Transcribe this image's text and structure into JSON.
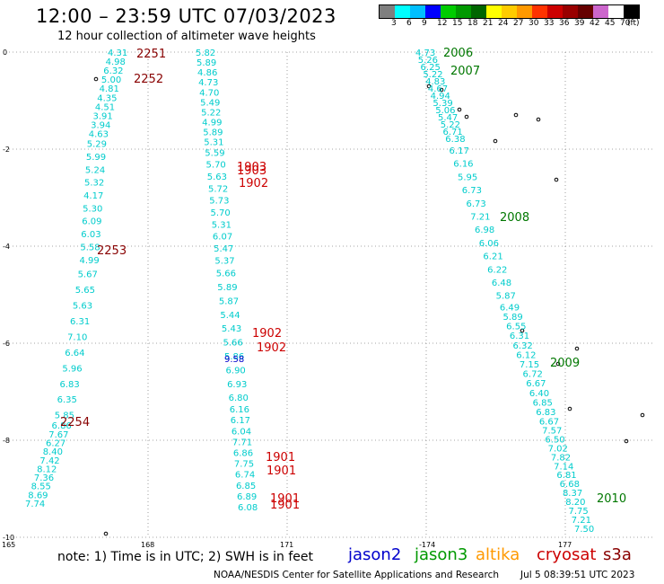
{
  "title": "12:00 – 23:59 UTC 07/03/2023",
  "subtitle": "12 hour collection of altimeter wave heights",
  "colorbar": {
    "colors": [
      "#7f7f7f",
      "#00ffff",
      "#00bfff",
      "#0000ff",
      "#00cc00",
      "#009900",
      "#006600",
      "#ffff00",
      "#ffcc00",
      "#ff9900",
      "#ff3300",
      "#cc0000",
      "#990000",
      "#660000",
      "#cc66cc",
      "#ffffff",
      "#000000"
    ],
    "labels": [
      "3",
      "6",
      "9",
      "12",
      "15",
      "18",
      "21",
      "24",
      "27",
      "30",
      "33",
      "36",
      "39",
      "42",
      "45",
      "70",
      "(ft)"
    ]
  },
  "axes": {
    "y_ticks": [
      "0",
      "-2",
      "-4",
      "-6",
      "-8",
      "-10"
    ],
    "x_ticks": [
      "165",
      "168",
      "171",
      "-174",
      "177"
    ]
  },
  "note": "note:  1) Time is in UTC;  2) SWH is in feet",
  "legend": [
    {
      "name": "jason2",
      "color": "#0000cc"
    },
    {
      "name": "jason3",
      "color": "#009900"
    },
    {
      "name": "altika",
      "color": "#ff9900"
    },
    {
      "name": "cryosat",
      "color": "#cc0000"
    },
    {
      "name": "s3a",
      "color": "#880000"
    }
  ],
  "credit": "NOAA/NESDIS Center for Satellite Applications and Research",
  "generated": "Jul  5 08:39:51 UTC 2023",
  "tracks": [
    {
      "id": "t1",
      "color": "#00cccc",
      "values": [
        "4.31",
        "4.98",
        "6.32",
        "5.00",
        "4.81",
        "4.35",
        "4.51",
        "3.91",
        "3.94",
        "4.63",
        "5.29",
        "5.99",
        "5.24",
        "5.32",
        "4.17",
        "5.30",
        "6.09",
        "6.03",
        "5.58",
        "4.99",
        "5.67",
        "5.65",
        "5.63",
        "6.31",
        "7.10",
        "6.64",
        "5.96",
        "6.83",
        "6.35",
        "5.85",
        "6.86",
        "7.67",
        "6.27",
        "8.40",
        "7.42",
        "8.12",
        "7.36",
        "8.55",
        "8.69",
        "7.74"
      ]
    },
    {
      "id": "t2",
      "color": "#00cccc",
      "values": [
        "5.82",
        "5.89",
        "4.86",
        "4.73",
        "4.70",
        "5.49",
        "5.22",
        "4.99",
        "5.89",
        "5.31",
        "5.59",
        "5.70",
        "5.63",
        "5.72",
        "5.73",
        "5.70",
        "5.31",
        "6.07",
        "5.47",
        "5.37",
        "5.66",
        "5.89",
        "5.87",
        "5.44",
        "5.43",
        "5.66",
        "5.86",
        "6.90",
        "6.93",
        "6.80",
        "6.16",
        "6.17",
        "6.04",
        "7.71",
        "6.86",
        "7.75",
        "6.74",
        "6.85",
        "6.89",
        "6.08"
      ]
    },
    {
      "id": "t3",
      "color": "#00cccc",
      "values": [
        "4.73",
        "5.26",
        "6.25",
        "5.22",
        "4.83",
        "4.67",
        "4.94",
        "5.39",
        "5.06",
        "5.47",
        "5.22",
        "6.71",
        "6.38",
        "6.17",
        "6.16",
        "5.95",
        "6.73",
        "6.73",
        "7.21",
        "6.98",
        "6.06",
        "6.21",
        "6.22",
        "6.48",
        "5.87",
        "6.49",
        "5.89",
        "6.55",
        "6.31",
        "6.32",
        "6.12",
        "7.15",
        "6.72",
        "6.67",
        "6.40",
        "6.85",
        "6.83",
        "6.67",
        "7.57",
        "6.50",
        "7.02",
        "7.82",
        "7.14",
        "6.81",
        "6.68",
        "8.37",
        "8.20",
        "7.75",
        "7.21",
        "7.50"
      ]
    }
  ],
  "single_values": [
    {
      "value": "9.58",
      "color": "#0000cc"
    }
  ],
  "time_labels": [
    {
      "text": "2251",
      "color": "#880000"
    },
    {
      "text": "2252",
      "color": "#880000"
    },
    {
      "text": "2253",
      "color": "#880000"
    },
    {
      "text": "2254",
      "color": "#880000"
    },
    {
      "text": "1903",
      "color": "#cc0000"
    },
    {
      "text": "1903",
      "color": "#cc0000"
    },
    {
      "text": "1902",
      "color": "#cc0000"
    },
    {
      "text": "1902",
      "color": "#cc0000"
    },
    {
      "text": "1902",
      "color": "#cc0000"
    },
    {
      "text": "1901",
      "color": "#cc0000"
    },
    {
      "text": "1901",
      "color": "#cc0000"
    },
    {
      "text": "1901",
      "color": "#cc0000"
    },
    {
      "text": "1901",
      "color": "#cc0000"
    },
    {
      "text": "2006",
      "color": "#007700"
    },
    {
      "text": "2007",
      "color": "#007700"
    },
    {
      "text": "2008",
      "color": "#007700"
    },
    {
      "text": "2009",
      "color": "#007700"
    },
    {
      "text": "2010",
      "color": "#007700"
    }
  ]
}
